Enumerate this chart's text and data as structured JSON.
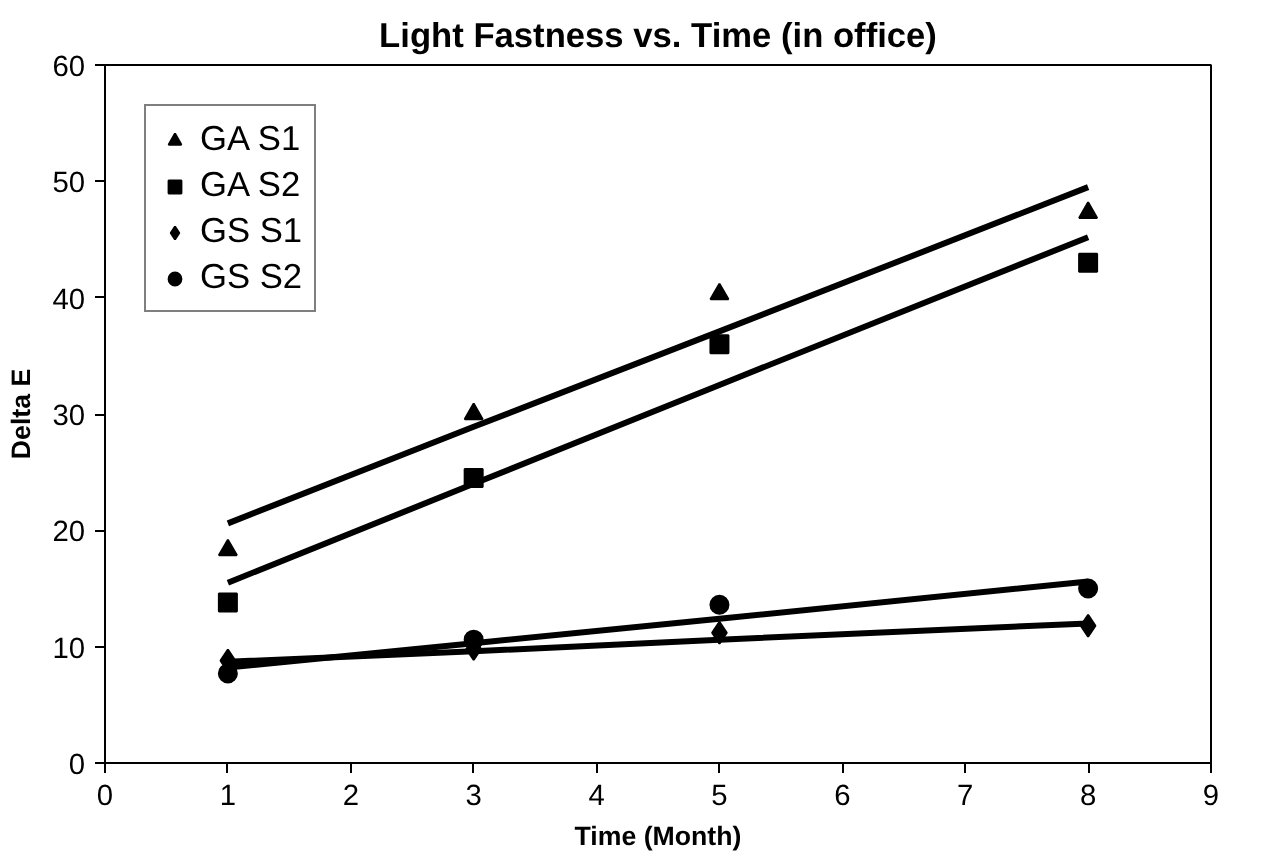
{
  "chart_data": {
    "type": "scatter",
    "title": "Light Fastness vs. Time (in office)",
    "xlabel": "Time (Month)",
    "ylabel": "Delta E",
    "x": [
      1,
      3,
      5,
      8
    ],
    "series": [
      {
        "name": "GA S1",
        "color": "#000000",
        "marker": "triangle",
        "values": [
          18.3,
          30,
          40.3,
          47.3
        ]
      },
      {
        "name": "GA S2",
        "color": "#000000",
        "marker": "square",
        "values": [
          13.8,
          24.5,
          36,
          43
        ]
      },
      {
        "name": "GS S1",
        "color": "#000000",
        "marker": "diamond",
        "values": [
          8.8,
          9.8,
          11.2,
          11.8
        ]
      },
      {
        "name": "GS S2",
        "color": "#000000",
        "marker": "circle",
        "values": [
          7.7,
          10.6,
          13.6,
          15
        ]
      },
      {
        "type": "line",
        "color": "#000000",
        "values": [
          20.6,
          28.9,
          37.1,
          49.5
        ]
      },
      {
        "type": "line",
        "color": "#000000",
        "values": [
          15.5,
          24.0,
          32.5,
          45.2
        ]
      },
      {
        "type": "line",
        "color": "#000000",
        "values": [
          8.7,
          9.6,
          10.6,
          12
        ]
      },
      {
        "type": "line",
        "color": "#000000",
        "values": [
          8.2,
          10.3,
          12.4,
          15.6
        ]
      }
    ],
    "xlim": [
      0,
      9
    ],
    "xticks": [
      0,
      1,
      2,
      3,
      4,
      5,
      6,
      7,
      8,
      9
    ],
    "ylim": [
      0,
      60
    ],
    "yticks": [
      0,
      10,
      20,
      30,
      40,
      50,
      60
    ],
    "grid": false,
    "legend": "top left"
  }
}
